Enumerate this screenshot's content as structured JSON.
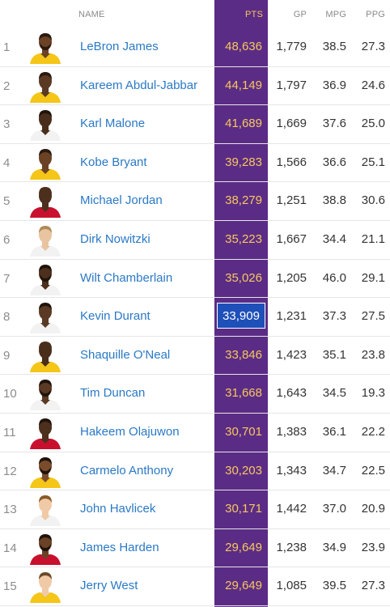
{
  "header": {
    "name": "NAME",
    "pts": "PTS",
    "gp": "GP",
    "mpg": "MPG",
    "ppg": "PPG"
  },
  "colors": {
    "pts_column": "#5b2c86",
    "pts_text": "#f7c85c",
    "highlight": "#1f4fb8",
    "link": "#2a79c6"
  },
  "players": [
    {
      "rank": "1",
      "name": "LeBron James",
      "pts": "48,636",
      "gp": "1,779",
      "mpg": "38.5",
      "ppg": "27.3",
      "skin": "#6b4226",
      "jersey": "#f5c518",
      "hair": "#2a1a10",
      "beard": true
    },
    {
      "rank": "2",
      "name": "Kareem Abdul-Jabbar",
      "pts": "44,149",
      "gp": "1,797",
      "mpg": "36.9",
      "ppg": "24.6",
      "skin": "#5a3a24",
      "jersey": "#f5c518",
      "hair": "#2a1a10",
      "beard": false
    },
    {
      "rank": "3",
      "name": "Karl Malone",
      "pts": "41,689",
      "gp": "1,669",
      "mpg": "37.6",
      "ppg": "25.0",
      "skin": "#4a2e1c",
      "jersey": "#f2f2f2",
      "hair": "#1f140c",
      "beard": false
    },
    {
      "rank": "4",
      "name": "Kobe Bryant",
      "pts": "39,283",
      "gp": "1,566",
      "mpg": "36.6",
      "ppg": "25.1",
      "skin": "#6b4226",
      "jersey": "#f5c518",
      "hair": "#2a1a10",
      "beard": false
    },
    {
      "rank": "5",
      "name": "Michael Jordan",
      "pts": "38,279",
      "gp": "1,251",
      "mpg": "38.8",
      "ppg": "30.6",
      "skin": "#4d2f1d",
      "jersey": "#c8102e",
      "hair": "#4d2f1d",
      "beard": false
    },
    {
      "rank": "6",
      "name": "Dirk Nowitzki",
      "pts": "35,223",
      "gp": "1,667",
      "mpg": "34.4",
      "ppg": "21.1",
      "skin": "#e8c4a0",
      "jersey": "#f2f2f2",
      "hair": "#b08a5a",
      "beard": false
    },
    {
      "rank": "7",
      "name": "Wilt Chamberlain",
      "pts": "35,026",
      "gp": "1,205",
      "mpg": "46.0",
      "ppg": "29.1",
      "skin": "#4d2f1d",
      "jersey": "#f2f2f2",
      "hair": "#1f140c",
      "beard": true
    },
    {
      "rank": "8",
      "name": "Kevin Durant",
      "pts": "33,909",
      "gp": "1,231",
      "mpg": "37.3",
      "ppg": "27.5",
      "skin": "#5a3a24",
      "jersey": "#f2f2f2",
      "hair": "#1f140c",
      "beard": false,
      "highlight": true
    },
    {
      "rank": "9",
      "name": "Shaquille O'Neal",
      "pts": "33,846",
      "gp": "1,423",
      "mpg": "35.1",
      "ppg": "23.8",
      "skin": "#4a2e1c",
      "jersey": "#f5c518",
      "hair": "#4a2e1c",
      "beard": false
    },
    {
      "rank": "10",
      "name": "Tim Duncan",
      "pts": "31,668",
      "gp": "1,643",
      "mpg": "34.5",
      "ppg": "19.3",
      "skin": "#5a3a24",
      "jersey": "#f2f2f2",
      "hair": "#1f140c",
      "beard": true
    },
    {
      "rank": "11",
      "name": "Hakeem Olajuwon",
      "pts": "30,701",
      "gp": "1,383",
      "mpg": "36.1",
      "ppg": "22.2",
      "skin": "#4d2f1d",
      "jersey": "#c8102e",
      "hair": "#1f140c",
      "beard": false
    },
    {
      "rank": "12",
      "name": "Carmelo Anthony",
      "pts": "30,203",
      "gp": "1,343",
      "mpg": "34.7",
      "ppg": "22.5",
      "skin": "#7a4c2c",
      "jersey": "#f5c518",
      "hair": "#1f140c",
      "beard": true
    },
    {
      "rank": "13",
      "name": "John Havlicek",
      "pts": "30,171",
      "gp": "1,442",
      "mpg": "37.0",
      "ppg": "20.9",
      "skin": "#f0caa6",
      "jersey": "#f2f2f2",
      "hair": "#8a5a2a",
      "beard": false
    },
    {
      "rank": "14",
      "name": "James Harden",
      "pts": "29,649",
      "gp": "1,238",
      "mpg": "34.9",
      "ppg": "23.9",
      "skin": "#6b4226",
      "jersey": "#c8102e",
      "hair": "#1f140c",
      "beard": true
    },
    {
      "rank": "15",
      "name": "Jerry West",
      "pts": "29,649",
      "gp": "1,085",
      "mpg": "39.5",
      "ppg": "27.3",
      "skin": "#f0caa6",
      "jersey": "#f5c518",
      "hair": "#6b4a2a",
      "beard": false
    }
  ]
}
